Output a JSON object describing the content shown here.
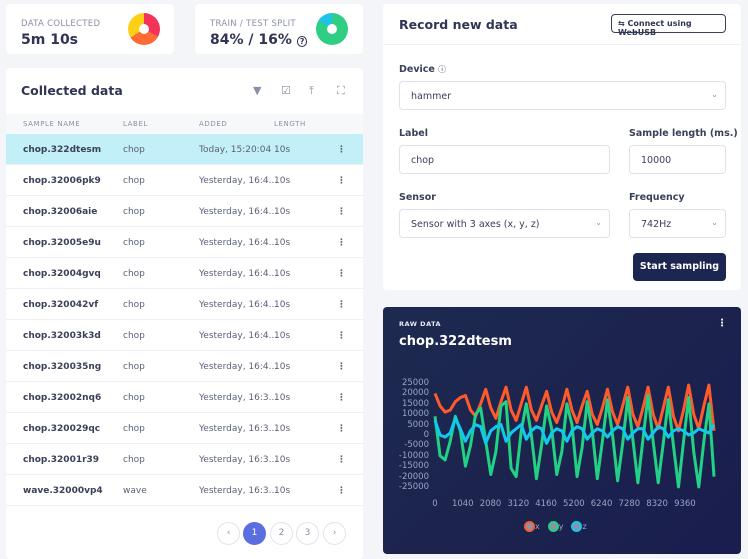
{
  "stats": {
    "data_collected": {
      "label": "DATA COLLECTED",
      "value": "5m 10s"
    },
    "split": {
      "label": "TRAIN / TEST SPLIT",
      "value": "84% / 16%",
      "help_icon": "question-circle-icon"
    }
  },
  "collected": {
    "title": "Collected data",
    "tools": [
      "filter-icon",
      "checkbox-icon",
      "upload-icon",
      "fullscreen-icon"
    ],
    "columns": [
      "SAMPLE NAME",
      "LABEL",
      "ADDED",
      "LENGTH"
    ],
    "rows": [
      {
        "name": "chop.322dtesm",
        "label": "chop",
        "added": "Today, 15:20:04",
        "length": "10s",
        "selected": true
      },
      {
        "name": "chop.32006pk9",
        "label": "chop",
        "added": "Yesterday, 16:4...",
        "length": "10s"
      },
      {
        "name": "chop.32006aie",
        "label": "chop",
        "added": "Yesterday, 16:4...",
        "length": "10s"
      },
      {
        "name": "chop.32005e9u",
        "label": "chop",
        "added": "Yesterday, 16:4...",
        "length": "10s"
      },
      {
        "name": "chop.32004gvq",
        "label": "chop",
        "added": "Yesterday, 16:4...",
        "length": "10s"
      },
      {
        "name": "chop.320042vf",
        "label": "chop",
        "added": "Yesterday, 16:4...",
        "length": "10s"
      },
      {
        "name": "chop.32003k3d",
        "label": "chop",
        "added": "Yesterday, 16:4...",
        "length": "10s"
      },
      {
        "name": "chop.320035ng",
        "label": "chop",
        "added": "Yesterday, 16:4...",
        "length": "10s"
      },
      {
        "name": "chop.32002nq6",
        "label": "chop",
        "added": "Yesterday, 16:3...",
        "length": "10s"
      },
      {
        "name": "chop.320029qc",
        "label": "chop",
        "added": "Yesterday, 16:3...",
        "length": "10s"
      },
      {
        "name": "chop.32001r39",
        "label": "chop",
        "added": "Yesterday, 16:3...",
        "length": "10s"
      },
      {
        "name": "wave.32000vp4",
        "label": "wave",
        "added": "Yesterday, 16:3...",
        "length": "10s"
      }
    ],
    "pagination": {
      "prev": "‹",
      "pages": [
        "1",
        "2",
        "3"
      ],
      "current": "1",
      "next": "›"
    }
  },
  "record": {
    "title": "Record new data",
    "connect_button": "Connect using WebUSB",
    "usb_icon": "usb-icon",
    "device_label": "Device",
    "device_value": "hammer",
    "label_label": "Label",
    "label_value": "chop",
    "length_label": "Sample length (ms.)",
    "length_value": "10000",
    "sensor_label": "Sensor",
    "sensor_value": "Sensor with 3 axes (x, y, z)",
    "freq_label": "Frequency",
    "freq_value": "742Hz",
    "start_button": "Start sampling"
  },
  "raw": {
    "label": "RAW DATA",
    "title": "chop.322dtesm"
  },
  "chart_data": {
    "type": "line",
    "xlim": [
      0,
      10450
    ],
    "ylim": [
      -25000,
      25000
    ],
    "xticks": [
      "0",
      "1040",
      "2080",
      "3120",
      "4160",
      "5200",
      "6240",
      "7280",
      "8320",
      "9360"
    ],
    "yticks": [
      "25000",
      "20000",
      "15000",
      "10000",
      "5000",
      "0",
      "-5000",
      "-10000",
      "-15000",
      "-20000",
      "-25000"
    ],
    "legend_position": "bottom",
    "grid": false,
    "x": [
      0,
      190,
      380,
      570,
      760,
      950,
      1140,
      1330,
      1520,
      1710,
      1900,
      2090,
      2280,
      2470,
      2660,
      2850,
      3040,
      3230,
      3420,
      3610,
      3800,
      3990,
      4180,
      4370,
      4560,
      4750,
      4940,
      5130,
      5320,
      5510,
      5700,
      5890,
      6080,
      6270,
      6460,
      6650,
      6840,
      7030,
      7220,
      7410,
      7600,
      7790,
      7980,
      8170,
      8360,
      8550,
      8740,
      8930,
      9120,
      9310,
      9500,
      9690,
      9880,
      10070,
      10260,
      10450
    ],
    "series": [
      {
        "name": "x",
        "color": "#ff5a2c",
        "values": [
          20000,
          14000,
          11000,
          12000,
          16000,
          18000,
          19000,
          12000,
          9000,
          15000,
          22000,
          13000,
          8000,
          16000,
          23000,
          12000,
          7000,
          15000,
          23000,
          12000,
          7000,
          14000,
          21000,
          11000,
          6000,
          13000,
          22000,
          12000,
          6000,
          14000,
          21000,
          10000,
          5000,
          13000,
          22000,
          11000,
          5000,
          14000,
          23000,
          10000,
          4000,
          13000,
          23000,
          10000,
          3000,
          13000,
          23000,
          9000,
          2000,
          12000,
          24000,
          10000,
          3000,
          14000,
          24000,
          2000
        ]
      },
      {
        "name": "y",
        "color": "#21d184",
        "values": [
          9000,
          -10000,
          -12000,
          -3000,
          9000,
          2000,
          -15000,
          -5000,
          10000,
          13000,
          -3000,
          -19000,
          -8000,
          14000,
          16000,
          -16000,
          -20000,
          2000,
          15000,
          0,
          -21000,
          -5000,
          14000,
          3000,
          -19000,
          -8000,
          15000,
          5000,
          -20000,
          -6000,
          16000,
          2000,
          -21000,
          -3000,
          17000,
          0,
          -22000,
          -4000,
          18000,
          -2000,
          -23000,
          -2000,
          19000,
          -3000,
          -23000,
          -4000,
          17000,
          -5000,
          -25000,
          -3000,
          18000,
          -8000,
          -25000,
          -3000,
          15000,
          -20000
        ]
      },
      {
        "name": "z",
        "color": "#12c8ee",
        "values": [
          7000,
          0,
          -1000,
          1000,
          8000,
          3000,
          -3000,
          2000,
          5000,
          4000,
          -4000,
          2000,
          4000,
          5000,
          -3000,
          1000,
          3000,
          5000,
          -2000,
          2000,
          4000,
          3000,
          -4000,
          1000,
          3000,
          2000,
          -3000,
          2000,
          4000,
          3000,
          -2000,
          1000,
          3000,
          2000,
          -1000,
          2000,
          4000,
          3000,
          -2000,
          1000,
          3000,
          3000,
          -2000,
          1000,
          4000,
          3000,
          -1000,
          2000,
          3000,
          2000,
          0,
          1000,
          3000,
          2000,
          1000,
          5000
        ]
      }
    ]
  }
}
